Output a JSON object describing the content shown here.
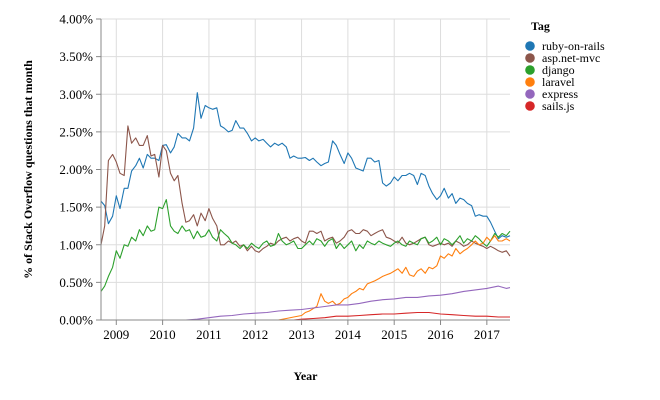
{
  "chart_data": {
    "type": "line",
    "xlabel": "Year",
    "ylabel": "% of Stack Overflow questions that month",
    "xlim": [
      2008.67,
      2017.5
    ],
    "ylim": [
      0,
      4.0
    ],
    "x_ticks": [
      2009,
      2010,
      2011,
      2012,
      2013,
      2014,
      2015,
      2016,
      2017
    ],
    "y_ticks": [
      0,
      0.5,
      1.0,
      1.5,
      2.0,
      2.5,
      3.0,
      3.5,
      4.0
    ],
    "y_tick_labels": [
      "0.00%",
      "0.50%",
      "1.00%",
      "1.50%",
      "2.00%",
      "2.50%",
      "3.00%",
      "3.50%",
      "4.00%"
    ],
    "grid": true,
    "legend_position": "right",
    "legend_title": "Tag",
    "series": [
      {
        "name": "ruby-on-rails",
        "color": "#1f77b4",
        "x": [
          2008.67,
          2008.75,
          2008.83,
          2008.92,
          2009.0,
          2009.08,
          2009.17,
          2009.25,
          2009.33,
          2009.42,
          2009.5,
          2009.58,
          2009.67,
          2009.75,
          2009.83,
          2009.92,
          2010.0,
          2010.08,
          2010.17,
          2010.25,
          2010.33,
          2010.42,
          2010.5,
          2010.58,
          2010.67,
          2010.75,
          2010.83,
          2010.92,
          2011.0,
          2011.08,
          2011.17,
          2011.25,
          2011.33,
          2011.42,
          2011.5,
          2011.58,
          2011.67,
          2011.75,
          2011.83,
          2011.92,
          2012.0,
          2012.08,
          2012.17,
          2012.25,
          2012.33,
          2012.42,
          2012.5,
          2012.58,
          2012.67,
          2012.75,
          2012.83,
          2012.92,
          2013.0,
          2013.08,
          2013.17,
          2013.25,
          2013.33,
          2013.42,
          2013.5,
          2013.58,
          2013.67,
          2013.75,
          2013.83,
          2013.92,
          2014.0,
          2014.08,
          2014.17,
          2014.25,
          2014.33,
          2014.42,
          2014.5,
          2014.58,
          2014.67,
          2014.75,
          2014.83,
          2014.92,
          2015.0,
          2015.08,
          2015.17,
          2015.25,
          2015.33,
          2015.42,
          2015.5,
          2015.58,
          2015.67,
          2015.75,
          2015.83,
          2015.92,
          2016.0,
          2016.08,
          2016.17,
          2016.25,
          2016.33,
          2016.42,
          2016.5,
          2016.58,
          2016.67,
          2016.75,
          2016.83,
          2016.92,
          2017.0,
          2017.08,
          2017.17,
          2017.25,
          2017.33,
          2017.42,
          2017.5
        ],
        "y": [
          1.58,
          1.52,
          1.28,
          1.38,
          1.65,
          1.48,
          1.75,
          1.75,
          1.98,
          2.05,
          2.15,
          2.02,
          2.2,
          2.15,
          2.15,
          2.12,
          2.32,
          2.33,
          2.22,
          2.3,
          2.48,
          2.42,
          2.42,
          2.38,
          2.55,
          3.02,
          2.68,
          2.85,
          2.82,
          2.8,
          2.82,
          2.58,
          2.55,
          2.5,
          2.52,
          2.65,
          2.55,
          2.55,
          2.48,
          2.38,
          2.42,
          2.38,
          2.4,
          2.35,
          2.3,
          2.35,
          2.32,
          2.35,
          2.3,
          2.15,
          2.18,
          2.15,
          2.15,
          2.16,
          2.12,
          2.15,
          2.1,
          2.05,
          2.08,
          2.1,
          2.38,
          2.32,
          2.2,
          2.08,
          2.22,
          2.15,
          2.02,
          2.0,
          1.98,
          2.15,
          2.15,
          2.1,
          2.12,
          1.82,
          1.78,
          1.82,
          1.9,
          1.85,
          1.92,
          1.92,
          1.95,
          1.92,
          1.8,
          1.95,
          1.92,
          1.78,
          1.68,
          1.6,
          1.65,
          1.75,
          1.62,
          1.68,
          1.55,
          1.62,
          1.6,
          1.55,
          1.52,
          1.38,
          1.4,
          1.38,
          1.38,
          1.3,
          1.18,
          1.08,
          1.12,
          1.1,
          1.12
        ]
      },
      {
        "name": "asp.net-mvc",
        "color": "#8c564b",
        "x": [
          2008.67,
          2008.75,
          2008.83,
          2008.92,
          2009.0,
          2009.08,
          2009.17,
          2009.25,
          2009.33,
          2009.42,
          2009.5,
          2009.58,
          2009.67,
          2009.75,
          2009.83,
          2009.92,
          2010.0,
          2010.08,
          2010.17,
          2010.25,
          2010.33,
          2010.42,
          2010.5,
          2010.58,
          2010.67,
          2010.75,
          2010.83,
          2010.92,
          2011.0,
          2011.08,
          2011.17,
          2011.25,
          2011.33,
          2011.42,
          2011.5,
          2011.58,
          2011.67,
          2011.75,
          2011.83,
          2011.92,
          2012.0,
          2012.08,
          2012.17,
          2012.25,
          2012.33,
          2012.42,
          2012.5,
          2012.58,
          2012.67,
          2012.75,
          2012.83,
          2012.92,
          2013.0,
          2013.08,
          2013.17,
          2013.25,
          2013.33,
          2013.42,
          2013.5,
          2013.58,
          2013.67,
          2013.75,
          2013.83,
          2013.92,
          2014.0,
          2014.08,
          2014.17,
          2014.25,
          2014.33,
          2014.42,
          2014.5,
          2014.58,
          2014.67,
          2014.75,
          2014.83,
          2014.92,
          2015.0,
          2015.08,
          2015.17,
          2015.25,
          2015.33,
          2015.42,
          2015.5,
          2015.58,
          2015.67,
          2015.75,
          2015.83,
          2015.92,
          2016.0,
          2016.08,
          2016.17,
          2016.25,
          2016.33,
          2016.42,
          2016.5,
          2016.58,
          2016.67,
          2016.75,
          2016.83,
          2016.92,
          2017.0,
          2017.08,
          2017.17,
          2017.25,
          2017.33,
          2017.42,
          2017.5
        ],
        "y": [
          1.0,
          1.25,
          2.12,
          2.2,
          2.1,
          1.95,
          1.92,
          2.58,
          2.35,
          2.42,
          2.32,
          2.32,
          2.45,
          2.18,
          2.2,
          1.9,
          2.32,
          2.25,
          1.95,
          1.85,
          1.92,
          1.55,
          1.3,
          1.32,
          1.4,
          1.25,
          1.42,
          1.32,
          1.48,
          1.35,
          1.25,
          1.0,
          1.0,
          1.05,
          1.02,
          1.05,
          0.98,
          1.0,
          0.92,
          0.98,
          0.92,
          0.9,
          0.95,
          0.98,
          1.02,
          1.0,
          1.05,
          1.08,
          1.1,
          1.05,
          1.08,
          1.1,
          1.05,
          1.02,
          1.18,
          1.18,
          1.15,
          1.18,
          1.05,
          1.08,
          1.1,
          1.02,
          1.05,
          1.1,
          1.18,
          1.2,
          1.15,
          1.15,
          1.2,
          1.18,
          1.12,
          1.15,
          1.18,
          1.2,
          1.1,
          1.08,
          1.05,
          1.02,
          1.1,
          1.02,
          1.0,
          1.02,
          1.05,
          1.08,
          1.1,
          1.0,
          0.98,
          1.0,
          1.02,
          1.0,
          1.02,
          0.98,
          1.05,
          1.02,
          0.98,
          1.0,
          1.05,
          1.02,
          1.0,
          0.98,
          0.95,
          0.98,
          0.95,
          0.92,
          0.9,
          0.92,
          0.85
        ]
      },
      {
        "name": "django",
        "color": "#2ca02c",
        "x": [
          2008.67,
          2008.75,
          2008.83,
          2008.92,
          2009.0,
          2009.08,
          2009.17,
          2009.25,
          2009.33,
          2009.42,
          2009.5,
          2009.58,
          2009.67,
          2009.75,
          2009.83,
          2009.92,
          2010.0,
          2010.08,
          2010.17,
          2010.25,
          2010.33,
          2010.42,
          2010.5,
          2010.58,
          2010.67,
          2010.75,
          2010.83,
          2010.92,
          2011.0,
          2011.08,
          2011.17,
          2011.25,
          2011.33,
          2011.42,
          2011.5,
          2011.58,
          2011.67,
          2011.75,
          2011.83,
          2011.92,
          2012.0,
          2012.08,
          2012.17,
          2012.25,
          2012.33,
          2012.42,
          2012.5,
          2012.58,
          2012.67,
          2012.75,
          2012.83,
          2012.92,
          2013.0,
          2013.08,
          2013.17,
          2013.25,
          2013.33,
          2013.42,
          2013.5,
          2013.58,
          2013.67,
          2013.75,
          2013.83,
          2013.92,
          2014.0,
          2014.08,
          2014.17,
          2014.25,
          2014.33,
          2014.42,
          2014.5,
          2014.58,
          2014.67,
          2014.75,
          2014.83,
          2014.92,
          2015.0,
          2015.08,
          2015.17,
          2015.25,
          2015.33,
          2015.42,
          2015.5,
          2015.58,
          2015.67,
          2015.75,
          2015.83,
          2015.92,
          2016.0,
          2016.08,
          2016.17,
          2016.25,
          2016.33,
          2016.42,
          2016.5,
          2016.58,
          2016.67,
          2016.75,
          2016.83,
          2016.92,
          2017.0,
          2017.08,
          2017.17,
          2017.25,
          2017.33,
          2017.42,
          2017.5
        ],
        "y": [
          0.38,
          0.45,
          0.58,
          0.7,
          0.92,
          0.82,
          1.0,
          0.98,
          1.1,
          1.05,
          1.2,
          1.12,
          1.25,
          1.18,
          1.2,
          1.5,
          1.48,
          1.6,
          1.25,
          1.18,
          1.15,
          1.25,
          1.18,
          1.2,
          1.08,
          1.18,
          1.1,
          1.12,
          1.2,
          1.1,
          1.05,
          1.2,
          1.15,
          1.1,
          1.02,
          1.0,
          0.95,
          1.0,
          0.95,
          1.02,
          0.98,
          0.95,
          1.02,
          1.05,
          0.98,
          1.0,
          1.15,
          1.05,
          1.0,
          1.02,
          1.05,
          0.95,
          0.95,
          1.0,
          1.05,
          1.0,
          1.08,
          1.05,
          0.98,
          1.05,
          1.08,
          0.95,
          1.02,
          0.95,
          1.0,
          1.05,
          0.92,
          1.0,
          0.95,
          1.05,
          1.02,
          1.0,
          1.05,
          1.02,
          1.0,
          0.98,
          1.02,
          1.05,
          1.0,
          0.98,
          1.05,
          1.02,
          1.0,
          1.08,
          1.1,
          1.02,
          1.05,
          1.1,
          1.0,
          1.08,
          1.05,
          1.0,
          1.05,
          1.12,
          1.02,
          1.08,
          1.05,
          1.12,
          1.08,
          1.02,
          0.98,
          1.05,
          1.15,
          1.1,
          1.15,
          1.12,
          1.18
        ]
      },
      {
        "name": "laravel",
        "color": "#ff7f0e",
        "x": [
          2008.67,
          2012.5,
          2012.67,
          2012.83,
          2013.0,
          2013.08,
          2013.17,
          2013.25,
          2013.33,
          2013.42,
          2013.5,
          2013.58,
          2013.67,
          2013.75,
          2013.83,
          2013.92,
          2014.0,
          2014.08,
          2014.17,
          2014.25,
          2014.33,
          2014.42,
          2014.5,
          2014.58,
          2014.67,
          2014.75,
          2014.83,
          2014.92,
          2015.0,
          2015.08,
          2015.17,
          2015.25,
          2015.33,
          2015.42,
          2015.5,
          2015.58,
          2015.67,
          2015.75,
          2015.83,
          2015.92,
          2016.0,
          2016.08,
          2016.17,
          2016.25,
          2016.33,
          2016.42,
          2016.5,
          2016.58,
          2016.67,
          2016.75,
          2016.83,
          2016.92,
          2017.0,
          2017.08,
          2017.17,
          2017.25,
          2017.33,
          2017.42,
          2017.5
        ],
        "y": [
          0.0,
          0.0,
          0.02,
          0.04,
          0.06,
          0.1,
          0.12,
          0.15,
          0.18,
          0.35,
          0.25,
          0.22,
          0.25,
          0.2,
          0.22,
          0.28,
          0.3,
          0.35,
          0.38,
          0.42,
          0.4,
          0.48,
          0.5,
          0.52,
          0.55,
          0.58,
          0.6,
          0.62,
          0.65,
          0.68,
          0.62,
          0.7,
          0.6,
          0.58,
          0.65,
          0.68,
          0.62,
          0.7,
          0.68,
          0.72,
          0.85,
          0.82,
          0.88,
          0.85,
          0.95,
          0.88,
          0.92,
          0.95,
          1.0,
          1.05,
          1.0,
          1.02,
          1.1,
          1.05,
          1.12,
          1.05,
          1.05,
          1.08,
          1.05
        ]
      },
      {
        "name": "express",
        "color": "#9467bd",
        "x": [
          2008.67,
          2010.5,
          2010.75,
          2011.0,
          2011.25,
          2011.5,
          2011.75,
          2012.0,
          2012.25,
          2012.5,
          2012.75,
          2013.0,
          2013.25,
          2013.5,
          2013.75,
          2014.0,
          2014.25,
          2014.5,
          2014.75,
          2015.0,
          2015.25,
          2015.5,
          2015.75,
          2016.0,
          2016.25,
          2016.5,
          2016.75,
          2017.0,
          2017.25,
          2017.42,
          2017.5
        ],
        "y": [
          0.0,
          0.0,
          0.01,
          0.03,
          0.05,
          0.06,
          0.08,
          0.09,
          0.1,
          0.12,
          0.13,
          0.14,
          0.16,
          0.18,
          0.2,
          0.2,
          0.22,
          0.25,
          0.27,
          0.28,
          0.3,
          0.3,
          0.32,
          0.33,
          0.35,
          0.38,
          0.4,
          0.42,
          0.45,
          0.42,
          0.43
        ]
      },
      {
        "name": "sails.js",
        "color": "#d62728",
        "x": [
          2008.67,
          2012.83,
          2013.0,
          2013.25,
          2013.5,
          2013.75,
          2014.0,
          2014.25,
          2014.5,
          2014.75,
          2015.0,
          2015.25,
          2015.5,
          2015.75,
          2016.0,
          2016.25,
          2016.5,
          2016.75,
          2017.0,
          2017.25,
          2017.5
        ],
        "y": [
          0.0,
          0.0,
          0.01,
          0.02,
          0.03,
          0.05,
          0.05,
          0.06,
          0.07,
          0.08,
          0.08,
          0.09,
          0.1,
          0.1,
          0.08,
          0.07,
          0.06,
          0.05,
          0.05,
          0.04,
          0.04
        ]
      }
    ]
  }
}
